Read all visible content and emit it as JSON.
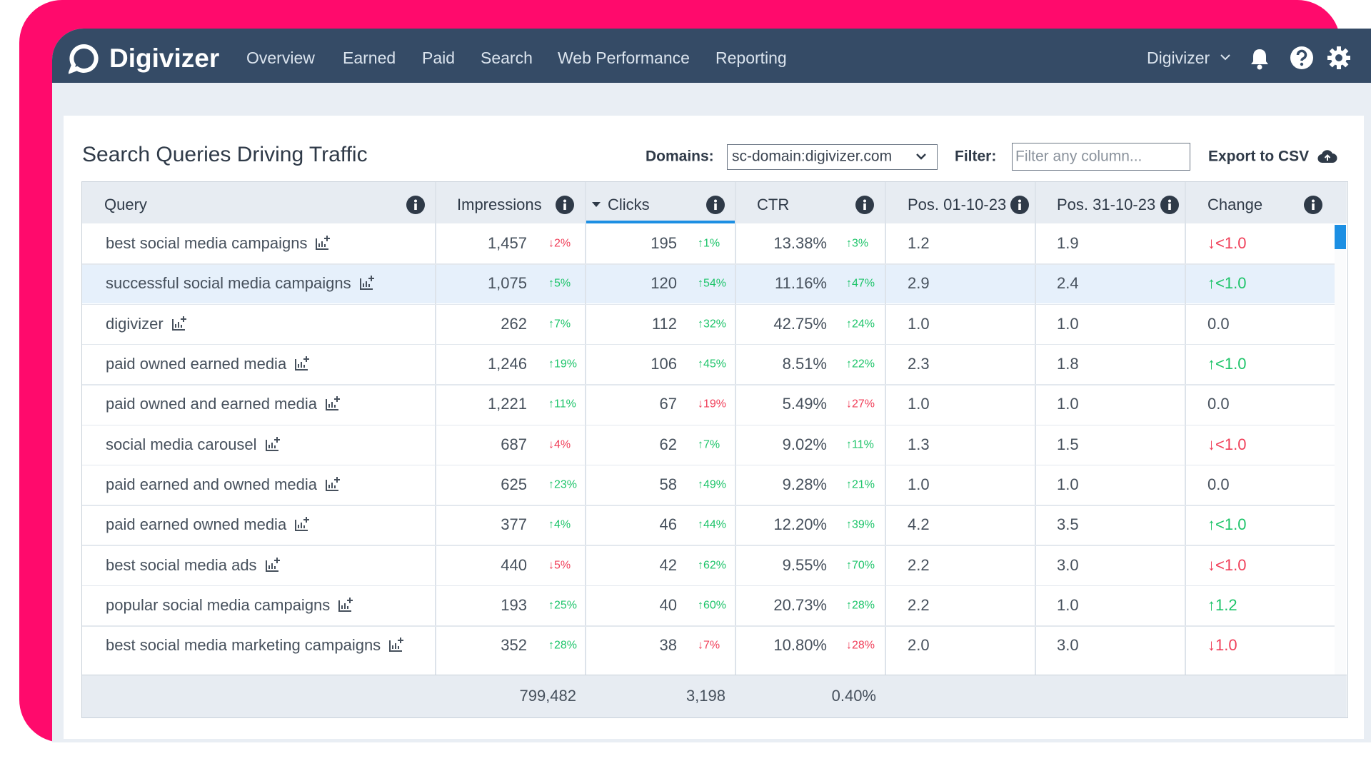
{
  "nav": {
    "brand": "Digivizer",
    "items": [
      "Overview",
      "Earned",
      "Paid",
      "Search",
      "Web Performance",
      "Reporting"
    ],
    "account": "Digivizer"
  },
  "panel": {
    "title": "Search Queries Driving Traffic",
    "domains_label": "Domains:",
    "domain": "sc-domain:digivizer.com",
    "filter_label": "Filter:",
    "filter_placeholder": "Filter any column...",
    "export": "Export to CSV"
  },
  "table": {
    "columns": [
      "Query",
      "Impressions",
      "Clicks",
      "CTR",
      "Pos. 01-10-23",
      "Pos. 31-10-23",
      "Change"
    ],
    "rows": [
      [
        "best social media campaigns",
        "1,457",
        "↓2%",
        "195",
        "↑1%",
        "13.38%",
        "↑3%",
        "1.2",
        "1.9",
        "↓<1.0"
      ],
      [
        "successful social media campaigns",
        "1,075",
        "↑5%",
        "120",
        "↑54%",
        "11.16%",
        "↑47%",
        "2.9",
        "2.4",
        "↑<1.0"
      ],
      [
        "digivizer",
        "262",
        "↑7%",
        "112",
        "↑32%",
        "42.75%",
        "↑24%",
        "1.0",
        "1.0",
        "0.0"
      ],
      [
        "paid owned earned media",
        "1,246",
        "↑19%",
        "106",
        "↑45%",
        "8.51%",
        "↑22%",
        "2.3",
        "1.8",
        "↑<1.0"
      ],
      [
        "paid owned and earned media",
        "1,221",
        "↑11%",
        "67",
        "↓19%",
        "5.49%",
        "↓27%",
        "1.0",
        "1.0",
        "0.0"
      ],
      [
        "social media carousel",
        "687",
        "↓4%",
        "62",
        "↑7%",
        "9.02%",
        "↑11%",
        "1.3",
        "1.5",
        "↓<1.0"
      ],
      [
        "paid earned and owned media",
        "625",
        "↑23%",
        "58",
        "↑49%",
        "9.28%",
        "↑21%",
        "1.0",
        "1.0",
        "0.0"
      ],
      [
        "paid earned owned media",
        "377",
        "↑4%",
        "46",
        "↑44%",
        "12.20%",
        "↑39%",
        "4.2",
        "3.5",
        "↑<1.0"
      ],
      [
        "best social media ads",
        "440",
        "↓5%",
        "42",
        "↑62%",
        "9.55%",
        "↑70%",
        "2.2",
        "3.0",
        "↓<1.0"
      ],
      [
        "popular social media campaigns",
        "193",
        "↑25%",
        "40",
        "↑60%",
        "20.73%",
        "↑28%",
        "2.2",
        "1.0",
        "↑1.2"
      ],
      [
        "best social media marketing campaigns",
        "352",
        "↑28%",
        "38",
        "↓7%",
        "10.80%",
        "↓28%",
        "2.0",
        "3.0",
        "↓1.0"
      ]
    ],
    "totals": [
      "799,482",
      "3,198",
      "0.40%"
    ]
  }
}
